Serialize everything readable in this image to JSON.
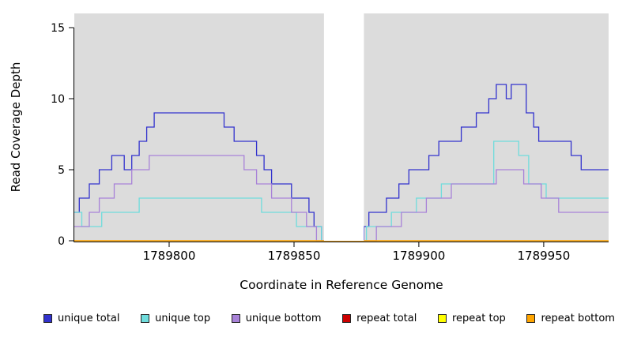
{
  "chart_data": {
    "type": "line",
    "subtype": "step",
    "title": "",
    "xlabel": "Coordinate in Reference Genome",
    "ylabel": "Read Coverage Depth",
    "xlim": [
      1789762,
      1789976
    ],
    "ylim": [
      0,
      16
    ],
    "x_ticks": [
      1789800,
      1789850,
      1789900,
      1789950
    ],
    "y_ticks": [
      0,
      5,
      10,
      15
    ],
    "grid": false,
    "panel_background": "#DCDCDC",
    "no_data_region": {
      "x_start": 1789862,
      "x_end": 1789878
    },
    "legend_position": "bottom",
    "series": [
      {
        "name": "unique total",
        "color": "#3232CD",
        "steps": [
          [
            1789762,
            2
          ],
          [
            1789764,
            3
          ],
          [
            1789768,
            4
          ],
          [
            1789772,
            5
          ],
          [
            1789777,
            6
          ],
          [
            1789782,
            5
          ],
          [
            1789785,
            6
          ],
          [
            1789788,
            7
          ],
          [
            1789791,
            8
          ],
          [
            1789794,
            9
          ],
          [
            1789822,
            8
          ],
          [
            1789826,
            7
          ],
          [
            1789835,
            6
          ],
          [
            1789838,
            5
          ],
          [
            1789841,
            4
          ],
          [
            1789849,
            3
          ],
          [
            1789856,
            2
          ],
          [
            1789858,
            1
          ],
          [
            1789861,
            0
          ],
          [
            1789878,
            1
          ],
          [
            1789880,
            2
          ],
          [
            1789887,
            3
          ],
          [
            1789892,
            4
          ],
          [
            1789896,
            5
          ],
          [
            1789904,
            6
          ],
          [
            1789908,
            7
          ],
          [
            1789917,
            8
          ],
          [
            1789923,
            9
          ],
          [
            1789928,
            10
          ],
          [
            1789931,
            11
          ],
          [
            1789935,
            10
          ],
          [
            1789937,
            11
          ],
          [
            1789943,
            9
          ],
          [
            1789946,
            8
          ],
          [
            1789948,
            7
          ],
          [
            1789961,
            6
          ],
          [
            1789965,
            5
          ]
        ]
      },
      {
        "name": "unique top",
        "color": "#6FDCDC",
        "steps": [
          [
            1789762,
            2
          ],
          [
            1789765,
            1
          ],
          [
            1789773,
            2
          ],
          [
            1789788,
            3
          ],
          [
            1789837,
            2
          ],
          [
            1789851,
            1
          ],
          [
            1789861,
            0
          ],
          [
            1789879,
            1
          ],
          [
            1789889,
            2
          ],
          [
            1789899,
            3
          ],
          [
            1789909,
            4
          ],
          [
            1789930,
            7
          ],
          [
            1789940,
            6
          ],
          [
            1789944,
            4
          ],
          [
            1789951,
            3
          ]
        ]
      },
      {
        "name": "unique bottom",
        "color": "#A882D8",
        "steps": [
          [
            1789762,
            1
          ],
          [
            1789768,
            2
          ],
          [
            1789772,
            3
          ],
          [
            1789778,
            4
          ],
          [
            1789785,
            5
          ],
          [
            1789792,
            6
          ],
          [
            1789830,
            5
          ],
          [
            1789835,
            4
          ],
          [
            1789841,
            3
          ],
          [
            1789849,
            2
          ],
          [
            1789855,
            1
          ],
          [
            1789859,
            0
          ],
          [
            1789883,
            1
          ],
          [
            1789893,
            2
          ],
          [
            1789903,
            3
          ],
          [
            1789913,
            4
          ],
          [
            1789931,
            5
          ],
          [
            1789942,
            4
          ],
          [
            1789949,
            3
          ],
          [
            1789956,
            2
          ]
        ]
      },
      {
        "name": "repeat total",
        "color": "#CC0000",
        "steps": [
          [
            1789762,
            0
          ]
        ]
      },
      {
        "name": "repeat top",
        "color": "#FFFF00",
        "steps": [
          [
            1789762,
            0
          ]
        ]
      },
      {
        "name": "repeat bottom",
        "color": "#FFA500",
        "steps": [
          [
            1789762,
            0
          ]
        ]
      }
    ]
  },
  "legend": {
    "items": [
      {
        "label": "unique total",
        "color": "#3232CD"
      },
      {
        "label": "unique top",
        "color": "#6FDCDC"
      },
      {
        "label": "unique bottom",
        "color": "#A882D8"
      },
      {
        "label": "repeat total",
        "color": "#CC0000"
      },
      {
        "label": "repeat top",
        "color": "#FFFF00"
      },
      {
        "label": "repeat bottom",
        "color": "#FFA500"
      }
    ]
  }
}
